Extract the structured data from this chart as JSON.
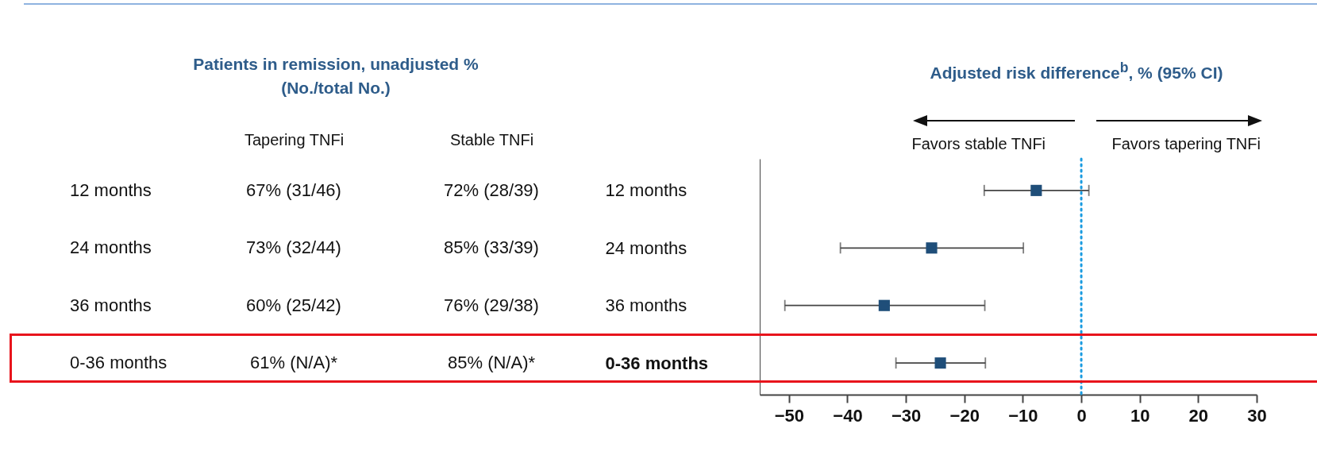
{
  "chart_data": [
    {
      "type": "other",
      "title": "Patients in remission, unadjusted %\n(No./total No.)",
      "categories": [
        "Tapering TNFi",
        "Stable TNFi"
      ],
      "y_categories": [
        "12 months",
        "24 months",
        "36 months",
        "0-36 months"
      ],
      "cell_labels": [
        [
          "67% (31/46)",
          "72% (28/39)"
        ],
        [
          "73% (32/44)",
          "85% (33/39)"
        ],
        [
          "60% (25/42)",
          "76% (29/38)"
        ],
        [
          "61% (N/A)*",
          "85% (N/A)*"
        ]
      ]
    },
    {
      "type": "scatter",
      "title": "Adjusted risk difference$^{b}$, % (95% CI)",
      "orientation": "horizontal",
      "categories": [
        "12 months",
        "24 months",
        "36 months",
        "0-36 months"
      ],
      "values": [
        -7.7,
        -25.6,
        -33.7,
        -24.1
      ],
      "errors": [
        [
          -16.6,
          1.3
        ],
        [
          -41.2,
          -9.9
        ],
        [
          -50.7,
          -16.5
        ],
        [
          -31.7,
          -16.4
        ]
      ],
      "color": "#1f4e79",
      "marker": "square",
      "xlim": [
        -55,
        30
      ],
      "xticks": [
        -50,
        -40,
        -30,
        -20,
        -10,
        0,
        10,
        20,
        30
      ],
      "ref_lines": [
        {
          "axis": "x",
          "value": 0,
          "color": "#1a9be0",
          "line_style": "dotted"
        }
      ],
      "annotations": [
        "Favors stable TNFi",
        "Favors tapering TNFi"
      ]
    }
  ]
}
